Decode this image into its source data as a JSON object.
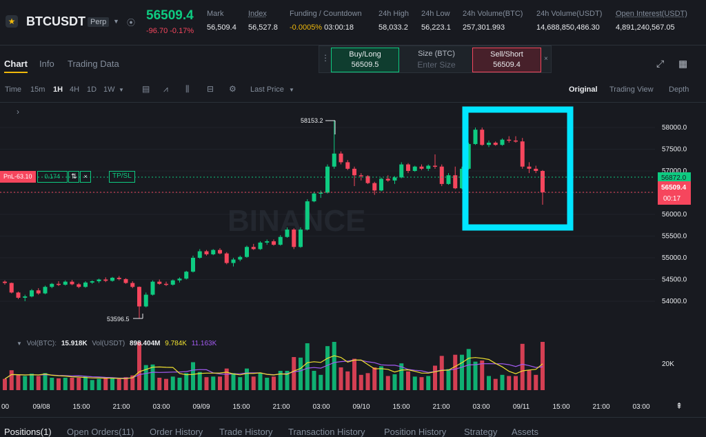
{
  "header": {
    "symbol": "BTCUSDT",
    "badge": "Perp",
    "last_price": "56509.4",
    "change": "-96.70 -0.17%",
    "stats": [
      {
        "label": "Mark",
        "value": "56,509.4",
        "underline": false
      },
      {
        "label": "Index",
        "value": "56,527.8",
        "underline": true
      },
      {
        "label": "Funding / Countdown",
        "value": "-0.0005%",
        "value2": "03:00:18",
        "underline": false
      },
      {
        "label": "24h High",
        "value": "58,033.2",
        "underline": false
      },
      {
        "label": "24h Low",
        "value": "56,223.1",
        "underline": false
      },
      {
        "label": "24h Volume(BTC)",
        "value": "257,301.993",
        "underline": false
      },
      {
        "label": "24h Volume(USDT)",
        "value": "14,688,850,486.30",
        "underline": false
      },
      {
        "label": "Open Interest(USDT)",
        "value": "4,891,240,567.05",
        "underline": true
      }
    ]
  },
  "tabs": [
    "Chart",
    "Info",
    "Trading Data"
  ],
  "order_widget": {
    "buy_label": "Buy/Long",
    "buy_price": "56509.5",
    "size_label": "Size (BTC)",
    "size_placeholder": "Enter Size",
    "sell_label": "Sell/Short",
    "sell_price": "56509.4",
    "close_symbol": "×"
  },
  "toolbar": {
    "time_label": "Time",
    "intervals": [
      "15m",
      "1H",
      "4H",
      "1D",
      "1W"
    ],
    "active_interval": "1H",
    "price_type": "Last Price",
    "views": [
      "Original",
      "Trading View",
      "Depth"
    ],
    "active_view": "Original"
  },
  "chart": {
    "pnl_label": "PnL-63.10",
    "pnl_qty": "0.174",
    "pnl_reverse": "⇅",
    "pnl_close": "×",
    "tpsl": "TP/SL",
    "high_label": "58153.2",
    "low_label": "53596.5",
    "position_price_label": "56872.0",
    "current_price_label": "56509.4",
    "countdown": "00:17",
    "watermark": "BINANCE",
    "y_ticks": [
      "58000.0",
      "57500.0",
      "57000.0",
      "56500.0",
      "56000.0",
      "55500.0",
      "55000.0",
      "54500.0",
      "54000.0"
    ],
    "x_ticks": [
      "00",
      "09/08",
      "15:00",
      "21:00",
      "03:00",
      "09/09",
      "15:00",
      "21:00",
      "03:00",
      "09/10",
      "15:00",
      "21:00",
      "03:00",
      "09/11",
      "15:00",
      "21:00",
      "03:00"
    ],
    "vol_tick": "20K",
    "colors": {
      "up": "#0ecb81",
      "down": "#f6465d",
      "highlight": "#00e5ff",
      "ma1": "#f0e130",
      "ma2": "#a35bf2"
    }
  },
  "volume_legend": {
    "vol_btc_label": "Vol(BTC):",
    "vol_btc": "15.918K",
    "vol_usdt_label": "Vol(USDT)",
    "vol_usdt": "898.404M",
    "ma1": "9.784K",
    "ma2": "11.163K"
  },
  "bottom_tabs": [
    "Positions(1)",
    "Open Orders(11)",
    "Order History",
    "Trade History",
    "Transaction History",
    "Position History",
    "Strategy",
    "Assets"
  ],
  "chart_data": {
    "type": "candlestick",
    "approximate": true,
    "y_range": [
      53600,
      58300
    ],
    "candles": [
      [
        54450,
        54480,
        54380,
        54420
      ],
      [
        54420,
        54430,
        54180,
        54200
      ],
      [
        54200,
        54220,
        54050,
        54080
      ],
      [
        54080,
        54150,
        54000,
        54110
      ],
      [
        54110,
        54280,
        54090,
        54250
      ],
      [
        54250,
        54300,
        54150,
        54180
      ],
      [
        54180,
        54360,
        54160,
        54330
      ],
      [
        54330,
        54420,
        54300,
        54400
      ],
      [
        54400,
        54460,
        54350,
        54380
      ],
      [
        54380,
        54480,
        54360,
        54450
      ],
      [
        54450,
        54490,
        54370,
        54390
      ],
      [
        54390,
        54420,
        54300,
        54330
      ],
      [
        54330,
        54460,
        54310,
        54430
      ],
      [
        54430,
        54480,
        54400,
        54460
      ],
      [
        54460,
        54520,
        54420,
        54500
      ],
      [
        54500,
        54550,
        54440,
        54470
      ],
      [
        54470,
        54560,
        54450,
        54540
      ],
      [
        54540,
        54580,
        54480,
        54510
      ],
      [
        54510,
        54530,
        54400,
        54420
      ],
      [
        54420,
        54460,
        54300,
        54330
      ],
      [
        54330,
        54340,
        53600,
        53880
      ],
      [
        53880,
        54200,
        53860,
        54150
      ],
      [
        54150,
        54480,
        54130,
        54450
      ],
      [
        54450,
        54500,
        54380,
        54400
      ],
      [
        54400,
        54450,
        54350,
        54380
      ],
      [
        54380,
        54500,
        54360,
        54480
      ],
      [
        54480,
        54550,
        54430,
        54520
      ],
      [
        54520,
        54700,
        54500,
        54680
      ],
      [
        54680,
        55050,
        54660,
        55000
      ],
      [
        55000,
        55200,
        54980,
        55150
      ],
      [
        55150,
        55180,
        55050,
        55080
      ],
      [
        55080,
        55200,
        55060,
        55180
      ],
      [
        55180,
        55220,
        55080,
        55100
      ],
      [
        55100,
        55130,
        54850,
        54880
      ],
      [
        54880,
        55000,
        54800,
        54960
      ],
      [
        54960,
        55050,
        54920,
        55020
      ],
      [
        55020,
        55280,
        55000,
        55250
      ],
      [
        55250,
        55320,
        55180,
        55200
      ],
      [
        55200,
        55380,
        55180,
        55350
      ],
      [
        55350,
        55420,
        55300,
        55380
      ],
      [
        55380,
        55420,
        55280,
        55300
      ],
      [
        55300,
        55520,
        55280,
        55480
      ],
      [
        55480,
        55700,
        55460,
        55650
      ],
      [
        55650,
        55680,
        55200,
        55250
      ],
      [
        55250,
        55700,
        55230,
        55650
      ],
      [
        55650,
        56350,
        55630,
        56300
      ],
      [
        56300,
        56520,
        56280,
        56480
      ],
      [
        56480,
        56550,
        56380,
        56500
      ],
      [
        56500,
        57150,
        56480,
        57100
      ],
      [
        57100,
        58153,
        57050,
        57400
      ],
      [
        57400,
        57450,
        57150,
        57200
      ],
      [
        57200,
        57250,
        57020,
        57050
      ],
      [
        57050,
        57100,
        56650,
        56900
      ],
      [
        56900,
        56950,
        56780,
        56880
      ],
      [
        56880,
        56900,
        56700,
        56720
      ],
      [
        56720,
        56750,
        56450,
        56550
      ],
      [
        56550,
        56850,
        56530,
        56820
      ],
      [
        56820,
        56900,
        56750,
        56780
      ],
      [
        56780,
        56880,
        56700,
        56850
      ],
      [
        56850,
        57200,
        56830,
        57150
      ],
      [
        57150,
        57180,
        56950,
        57000
      ],
      [
        57000,
        57120,
        56980,
        57100
      ],
      [
        57100,
        57150,
        57020,
        57050
      ],
      [
        57050,
        57150,
        57000,
        57120
      ],
      [
        57120,
        57380,
        57050,
        57100
      ],
      [
        57100,
        57150,
        56650,
        56700
      ],
      [
        56700,
        56950,
        56680,
        56900
      ],
      [
        56900,
        57100,
        56580,
        56600
      ],
      [
        56600,
        57100,
        56580,
        57050
      ],
      [
        57050,
        57650,
        57030,
        57620
      ],
      [
        57620,
        58000,
        57600,
        57950
      ],
      [
        57950,
        58000,
        57580,
        57600
      ],
      [
        57600,
        57700,
        57550,
        57650
      ],
      [
        57650,
        57680,
        57580,
        57600
      ],
      [
        57600,
        57750,
        57580,
        57720
      ],
      [
        57720,
        57800,
        57650,
        57700
      ],
      [
        57700,
        57800,
        57650,
        57680
      ],
      [
        57680,
        57760,
        57050,
        57100
      ],
      [
        57100,
        57200,
        56950,
        57050
      ],
      [
        57050,
        57120,
        56950,
        57000
      ],
      [
        57000,
        57020,
        56223,
        56509
      ]
    ],
    "volume_ma1": 9784,
    "volume_ma2": 11163
  }
}
